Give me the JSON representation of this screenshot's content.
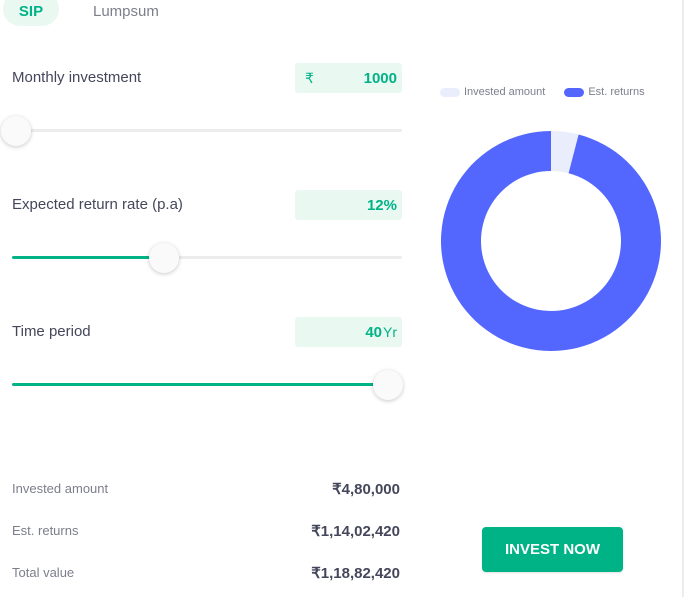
{
  "tabs": [
    {
      "label": "SIP",
      "active": true
    },
    {
      "label": "Lumpsum",
      "active": false
    }
  ],
  "inputs": {
    "monthly_investment": {
      "label": "Monthly investment",
      "currency": "₹",
      "value": "1000",
      "slider_fraction": 0.01
    },
    "return_rate": {
      "label": "Expected return rate (p.a)",
      "value": "12%",
      "slider_fraction": 0.39
    },
    "time_period": {
      "label": "Time period",
      "value": "40",
      "unit": "Yr",
      "slider_fraction": 0.965
    }
  },
  "summary": {
    "invested_label": "Invested amount",
    "invested_value": "₹4,80,000",
    "returns_label": "Est. returns",
    "returns_value": "₹1,14,02,420",
    "total_label": "Total value",
    "total_value": "₹1,18,82,420"
  },
  "legend": {
    "invested": "Invested amount",
    "returns": "Est. returns"
  },
  "chart_data": {
    "type": "pie",
    "style": "donut",
    "categories": [
      "Invested amount",
      "Est. returns"
    ],
    "values": [
      480000,
      11402420
    ],
    "colors": [
      "#eaeefc",
      "#5367ff"
    ],
    "legend_position": "top"
  },
  "colors": {
    "accent": "#00b386",
    "accent_light": "#eaf8f2",
    "returns": "#5367ff",
    "invested": "#eaeefc"
  },
  "cta": {
    "label": "INVEST NOW"
  }
}
